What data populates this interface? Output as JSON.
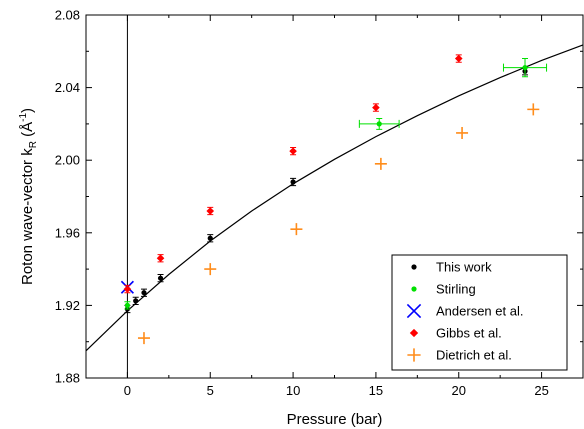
{
  "chart_data": {
    "type": "scatter",
    "title": "",
    "xlabel": "Pressure (bar)",
    "ylabel": "Roton wave-vector  k",
    "ylabel_subscript": "R",
    "ylabel_unit_prefix": "  (Å",
    "ylabel_unit_exponent": "-1",
    "ylabel_unit_suffix": ")",
    "xlim": [
      -2.5,
      27.5
    ],
    "ylim": [
      1.88,
      2.08
    ],
    "x_ticks": [
      0,
      5,
      10,
      15,
      20,
      25
    ],
    "x_tick_labels": [
      "0",
      "5",
      "10",
      "15",
      "20",
      "25"
    ],
    "y_ticks": [
      1.88,
      1.92,
      1.96,
      2.0,
      2.04,
      2.08
    ],
    "y_tick_labels": [
      "1.88",
      "1.92",
      "1.96",
      "2.00",
      "2.04",
      "2.08"
    ],
    "grid": false,
    "legend_position": "bottom-right",
    "vertical_reference_line_x": 0,
    "fit_curve": {
      "x": [
        -2.5,
        0,
        2.5,
        5,
        7.5,
        10,
        12.5,
        15,
        17.5,
        20,
        22.5,
        25,
        27.5
      ],
      "y": [
        1.895,
        1.917,
        1.937,
        1.9555,
        1.972,
        1.987,
        2.0005,
        2.013,
        2.0245,
        2.0355,
        2.0455,
        2.055,
        2.0635
      ]
    },
    "series": [
      {
        "name": "This work",
        "marker": "circle",
        "color": "#000000",
        "points": [
          {
            "x": 0,
            "y": 1.918,
            "yerr": 0.002
          },
          {
            "x": 0.5,
            "y": 1.9225,
            "yerr": 0.002
          },
          {
            "x": 1.0,
            "y": 1.927,
            "yerr": 0.002
          },
          {
            "x": 2.0,
            "y": 1.935,
            "yerr": 0.002
          },
          {
            "x": 5.0,
            "y": 1.957,
            "yerr": 0.002
          },
          {
            "x": 10.0,
            "y": 1.988,
            "yerr": 0.002
          },
          {
            "x": 24.0,
            "y": 2.049,
            "yerr": 0.002
          }
        ]
      },
      {
        "name": "Stirling",
        "marker": "circle",
        "color": "#00e000",
        "points": [
          {
            "x": 0,
            "y": 1.92,
            "yerr": 0.002
          },
          {
            "x": 15.2,
            "y": 2.02,
            "xerr": 1.2,
            "yerr": 0.003
          },
          {
            "x": 24.0,
            "y": 2.051,
            "xerr": 1.3,
            "yerr": 0.005
          }
        ]
      },
      {
        "name": "Andersen et al.",
        "marker": "x",
        "color": "#0000ff",
        "points": [
          {
            "x": 0,
            "y": 1.93
          }
        ]
      },
      {
        "name": "Gibbs et al.",
        "marker": "diamond",
        "color": "#ff0000",
        "points": [
          {
            "x": 0,
            "y": 1.929,
            "yerr": 0.002
          },
          {
            "x": 2.0,
            "y": 1.946,
            "yerr": 0.002
          },
          {
            "x": 5.0,
            "y": 1.972,
            "yerr": 0.002
          },
          {
            "x": 10.0,
            "y": 2.005,
            "yerr": 0.002
          },
          {
            "x": 15.0,
            "y": 2.029,
            "yerr": 0.002
          },
          {
            "x": 20.0,
            "y": 2.056,
            "yerr": 0.002
          }
        ]
      },
      {
        "name": "Dietrich et al.",
        "marker": "plus",
        "color": "#ff8c1a",
        "points": [
          {
            "x": 1.0,
            "y": 1.902
          },
          {
            "x": 5.0,
            "y": 1.94
          },
          {
            "x": 10.2,
            "y": 1.962
          },
          {
            "x": 15.3,
            "y": 1.998
          },
          {
            "x": 20.2,
            "y": 2.015
          },
          {
            "x": 24.5,
            "y": 2.028
          }
        ]
      }
    ]
  }
}
